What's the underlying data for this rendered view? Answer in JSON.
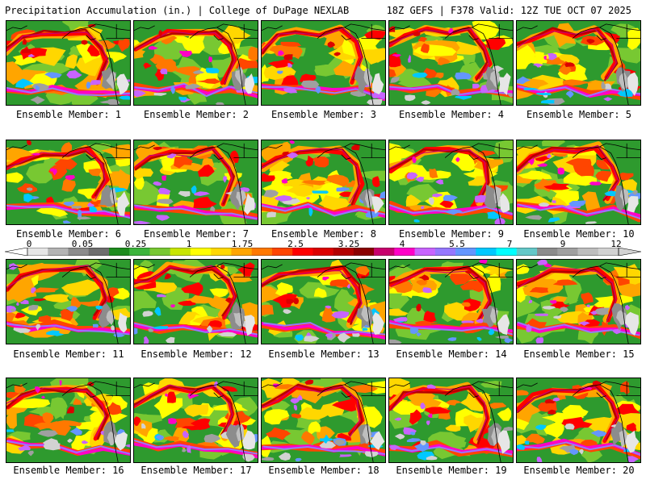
{
  "header": {
    "title": "Precipitation Accumulation (in.) | College of DuPage NEXLAB",
    "run_info": "18Z GEFS | F378 Valid: 12Z TUE OCT 07 2025"
  },
  "panels": [
    {
      "label": "Ensemble Member: 1"
    },
    {
      "label": "Ensemble Member: 2"
    },
    {
      "label": "Ensemble Member: 3"
    },
    {
      "label": "Ensemble Member: 4"
    },
    {
      "label": "Ensemble Member: 5"
    },
    {
      "label": "Ensemble Member: 6"
    },
    {
      "label": "Ensemble Member: 7"
    },
    {
      "label": "Ensemble Member: 8"
    },
    {
      "label": "Ensemble Member: 9"
    },
    {
      "label": "Ensemble Member: 10"
    },
    {
      "label": "Ensemble Member: 11"
    },
    {
      "label": "Ensemble Member: 12"
    },
    {
      "label": "Ensemble Member: 13"
    },
    {
      "label": "Ensemble Member: 14"
    },
    {
      "label": "Ensemble Member: 15"
    },
    {
      "label": "Ensemble Member: 16"
    },
    {
      "label": "Ensemble Member: 17"
    },
    {
      "label": "Ensemble Member: 18"
    },
    {
      "label": "Ensemble Member: 19"
    },
    {
      "label": "Ensemble Member: 20"
    }
  ],
  "colorbar": {
    "tick_labels": [
      "0",
      "0.05",
      "0.25",
      "1",
      "1.75",
      "2.5",
      "3.25",
      "4",
      "5.5",
      "7",
      "9",
      "12"
    ],
    "colors": [
      "#e6e6e6",
      "#b4b4b4",
      "#8c8c8c",
      "#6e6e6e",
      "#1e8c1e",
      "#3cb43c",
      "#78c832",
      "#c8e600",
      "#ffff00",
      "#ffd700",
      "#ffa500",
      "#ff7800",
      "#ff4500",
      "#ff0000",
      "#dc0000",
      "#b40000",
      "#8b0000",
      "#c8006e",
      "#ff00c8",
      "#c864ff",
      "#9678ff",
      "#6496ff",
      "#00c8ff",
      "#00ffff",
      "#64c8c8",
      "#8c8c8c",
      "#a0a0a0",
      "#bebebe",
      "#d2d2d2"
    ]
  }
}
